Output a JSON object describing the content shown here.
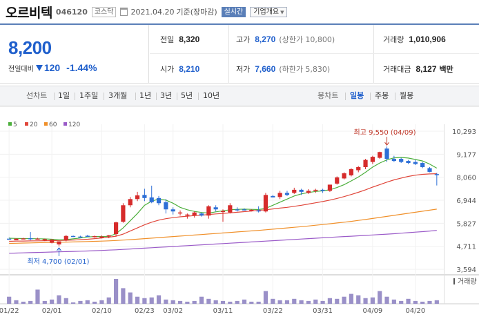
{
  "header": {
    "name": "오르비텍",
    "code": "046120",
    "market": "코스닥",
    "date": "2021.04.20",
    "basis": "기준(장마감)",
    "live": "실시간",
    "company_info": "기업개요"
  },
  "summary": {
    "price": "8,200",
    "change_label": "전일대비",
    "change": "120",
    "change_pct": "-1.44%",
    "prev_label": "전일",
    "prev": "8,320",
    "high_label": "고가",
    "high": "8,270",
    "upper_limit": "(상한가 10,800)",
    "volume_label": "거래량",
    "volume": "1,010,906",
    "open_label": "시가",
    "open": "8,210",
    "low_label": "저가",
    "low": "7,660",
    "lower_limit": "(하한가 5,830)",
    "amount_label": "거래대금",
    "amount": "8,127",
    "amount_unit": "백만"
  },
  "tabs": {
    "line_label": "선차트",
    "line_items": [
      "1일",
      "1주일",
      "3개월",
      "1년",
      "3년",
      "5년",
      "10년"
    ],
    "candle_label": "봉차트",
    "candle_items": [
      "일봉",
      "주봉",
      "월봉"
    ],
    "active": "일봉"
  },
  "colors": {
    "up": "#d62b2b",
    "down": "#2d6fd6",
    "ma5": "#4caf3c",
    "ma20": "#e0463a",
    "ma60": "#f0902a",
    "ma120": "#9a5ac8",
    "volume": "#9a90c8",
    "accent": "#1f5fcc"
  },
  "chart_data": {
    "type": "candlestick",
    "legend": [
      "5",
      "20",
      "60",
      "120"
    ],
    "y_ticks": [
      "10,293",
      "9,177",
      "8,060",
      "6,944",
      "5,827",
      "4,711",
      "3,594"
    ],
    "y_tick_values": [
      10293,
      9177,
      8060,
      6944,
      5827,
      4711,
      3594
    ],
    "x_ticks": [
      "01/22",
      "02/01",
      "02/10",
      "02/23",
      "03/02",
      "03/11",
      "03/22",
      "03/31",
      "04/09",
      "04/20"
    ],
    "x_tick_index": [
      0,
      6,
      13,
      19,
      23,
      30,
      37,
      44,
      51,
      57
    ],
    "volume_label": "거래량",
    "high_annotation": "최고 9,550 (04/09)",
    "low_annotation": "최저 4,700 (02/01)",
    "candles": [
      [
        5140,
        5160,
        5080,
        5050
      ],
      [
        5020,
        5080,
        5000,
        5080
      ],
      [
        5080,
        5120,
        5060,
        5090
      ],
      [
        5000,
        5400,
        5100,
        5090
      ],
      [
        5080,
        5120,
        5060,
        5080
      ],
      [
        4960,
        5080,
        5000,
        5050
      ],
      [
        4850,
        5060,
        4880,
        5030
      ],
      [
        4700,
        4950,
        4800,
        4950
      ],
      [
        4950,
        5260,
        5000,
        5210
      ],
      [
        5160,
        5230,
        5210,
        5180
      ],
      [
        5150,
        5220,
        5180,
        5160
      ],
      [
        5180,
        5260,
        5220,
        5170
      ],
      [
        5130,
        5230,
        5180,
        5200
      ],
      [
        5090,
        5240,
        5110,
        5180
      ],
      [
        5100,
        5260,
        5200,
        5240
      ],
      [
        5200,
        5900,
        5300,
        5870
      ],
      [
        5850,
        6800,
        5900,
        6700
      ],
      [
        6600,
        7100,
        6700,
        7000
      ],
      [
        6900,
        7350,
        7000,
        7180
      ],
      [
        6900,
        7500,
        7200,
        7050
      ],
      [
        6800,
        7650,
        7080,
        6850
      ],
      [
        6700,
        7150,
        7050,
        6800
      ],
      [
        6300,
        7000,
        6850,
        6500
      ],
      [
        6250,
        6600,
        6500,
        6400
      ],
      [
        6200,
        6450,
        6300,
        6350
      ],
      [
        6050,
        6300,
        6200,
        6250
      ],
      [
        6100,
        6400,
        6200,
        6350
      ],
      [
        6150,
        6350,
        6300,
        6200
      ],
      [
        6050,
        6700,
        6200,
        6650
      ],
      [
        6400,
        6700,
        6600,
        6500
      ],
      [
        5900,
        6500,
        6400,
        6420
      ],
      [
        6300,
        6800,
        6350,
        6700
      ],
      [
        6400,
        6600,
        6500,
        6460
      ],
      [
        6450,
        6550,
        6500,
        6480
      ],
      [
        6400,
        6500,
        6450,
        6480
      ],
      [
        6350,
        6650,
        6450,
        6400
      ],
      [
        6350,
        7300,
        6400,
        7200
      ],
      [
        7100,
        7200,
        7150,
        7080
      ],
      [
        7000,
        7400,
        7100,
        7300
      ],
      [
        7150,
        7400,
        7300,
        7200
      ],
      [
        7250,
        7550,
        7300,
        7450
      ],
      [
        7200,
        7500,
        7450,
        7350
      ],
      [
        7250,
        7480,
        7300,
        7400
      ],
      [
        7300,
        7500,
        7400,
        7450
      ],
      [
        7300,
        7500,
        7450,
        7420
      ],
      [
        7350,
        7700,
        7400,
        7700
      ],
      [
        7700,
        8100,
        7750,
        8050
      ],
      [
        7950,
        8300,
        8000,
        8250
      ],
      [
        8100,
        8500,
        8150,
        8450
      ],
      [
        8300,
        8600,
        8400,
        8550
      ],
      [
        8450,
        8950,
        8550,
        8900
      ],
      [
        8700,
        9100,
        8800,
        9050
      ],
      [
        8950,
        9300,
        9000,
        9280
      ],
      [
        8800,
        9550,
        9450,
        8950
      ],
      [
        8800,
        9100,
        8950,
        8850
      ],
      [
        8750,
        9000,
        8950,
        8800
      ],
      [
        8700,
        8900,
        8850,
        8750
      ],
      [
        8650,
        8900,
        8800,
        8700
      ],
      [
        8500,
        8800,
        8750,
        8550
      ],
      [
        8300,
        8550,
        8500,
        8320
      ],
      [
        7660,
        8270,
        8210,
        8200
      ]
    ],
    "volume": [
      10,
      5,
      3,
      4,
      20,
      4,
      6,
      12,
      8,
      2,
      4,
      5,
      3,
      5,
      9,
      35,
      22,
      16,
      10,
      8,
      9,
      12,
      6,
      5,
      4,
      3,
      4,
      10,
      7,
      5,
      4,
      3,
      4,
      6,
      3,
      3,
      18,
      7,
      5,
      5,
      7,
      5,
      4,
      6,
      4,
      8,
      7,
      10,
      14,
      12,
      8,
      9,
      18,
      10,
      6,
      4,
      7,
      4,
      3,
      4,
      5
    ],
    "ma5": [
      5100,
      5090,
      5085,
      5080,
      5075,
      5068,
      5052,
      5020,
      5030,
      5070,
      5110,
      5160,
      5180,
      5180,
      5190,
      5320,
      5600,
      5950,
      6300,
      6700,
      6900,
      7000,
      6950,
      6800,
      6600,
      6480,
      6400,
      6350,
      6320,
      6380,
      6430,
      6480,
      6500,
      6510,
      6500,
      6490,
      6550,
      6700,
      6850,
      7000,
      7150,
      7250,
      7320,
      7370,
      7400,
      7450,
      7560,
      7700,
      7880,
      8070,
      8300,
      8550,
      8750,
      8900,
      9000,
      9020,
      8990,
      8920,
      8850,
      8700,
      8500
    ],
    "ma20": [
      4950,
      4960,
      4965,
      4970,
      4975,
      4980,
      4985,
      4990,
      5000,
      5010,
      5030,
      5050,
      5080,
      5110,
      5150,
      5200,
      5300,
      5450,
      5600,
      5750,
      5880,
      5980,
      6050,
      6100,
      6140,
      6170,
      6200,
      6220,
      6250,
      6280,
      6300,
      6330,
      6360,
      6390,
      6420,
      6450,
      6480,
      6520,
      6560,
      6600,
      6650,
      6700,
      6760,
      6820,
      6880,
      6950,
      7030,
      7120,
      7220,
      7330,
      7450,
      7580,
      7700,
      7820,
      7930,
      8020,
      8100,
      8160,
      8200,
      8220,
      8230
    ],
    "ma60": [
      4850,
      4858,
      4866,
      4874,
      4882,
      4890,
      4898,
      4906,
      4914,
      4922,
      4932,
      4942,
      4952,
      4962,
      4975,
      4990,
      5010,
      5030,
      5055,
      5080,
      5105,
      5130,
      5155,
      5180,
      5205,
      5230,
      5255,
      5280,
      5305,
      5330,
      5355,
      5380,
      5405,
      5430,
      5455,
      5480,
      5510,
      5540,
      5570,
      5600,
      5630,
      5660,
      5695,
      5730,
      5765,
      5800,
      5840,
      5880,
      5920,
      5965,
      6010,
      6060,
      6110,
      6160,
      6210,
      6260,
      6310,
      6360,
      6410,
      6460,
      6510
    ],
    "ma120": [
      4370,
      4380,
      4390,
      4400,
      4410,
      4420,
      4430,
      4440,
      4450,
      4460,
      4470,
      4480,
      4495,
      4510,
      4525,
      4540,
      4560,
      4580,
      4600,
      4620,
      4640,
      4660,
      4680,
      4700,
      4720,
      4740,
      4760,
      4780,
      4800,
      4820,
      4840,
      4860,
      4880,
      4900,
      4920,
      4940,
      4960,
      4980,
      5000,
      5020,
      5040,
      5060,
      5080,
      5100,
      5120,
      5140,
      5160,
      5180,
      5200,
      5220,
      5240,
      5260,
      5280,
      5300,
      5320,
      5345,
      5370,
      5395,
      5420,
      5450,
      5480
    ]
  }
}
